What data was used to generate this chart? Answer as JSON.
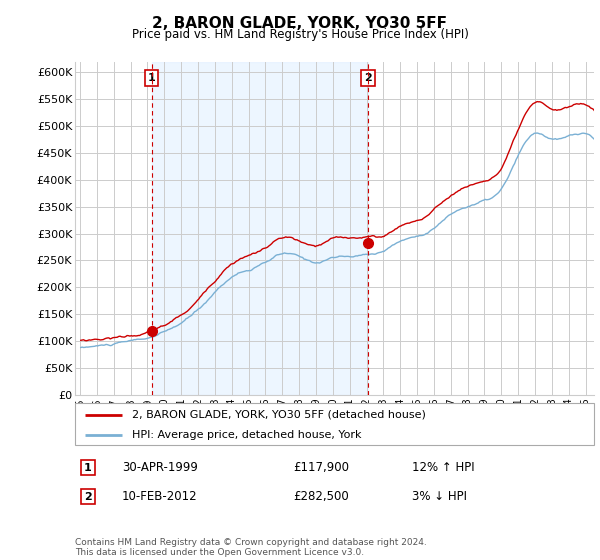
{
  "title": "2, BARON GLADE, YORK, YO30 5FF",
  "subtitle": "Price paid vs. HM Land Registry's House Price Index (HPI)",
  "ylim": [
    0,
    620000
  ],
  "yticks": [
    0,
    50000,
    100000,
    150000,
    200000,
    250000,
    300000,
    350000,
    400000,
    450000,
    500000,
    550000,
    600000
  ],
  "ytick_labels": [
    "£0",
    "£50K",
    "£100K",
    "£150K",
    "£200K",
    "£250K",
    "£300K",
    "£350K",
    "£400K",
    "£450K",
    "£500K",
    "£550K",
    "£600K"
  ],
  "sale1_date": "30-APR-1999",
  "sale1_price": 117900,
  "sale1_hpi": "12% ↑ HPI",
  "sale2_date": "10-FEB-2012",
  "sale2_price": 282500,
  "sale2_hpi": "3% ↓ HPI",
  "legend_line1": "2, BARON GLADE, YORK, YO30 5FF (detached house)",
  "legend_line2": "HPI: Average price, detached house, York",
  "footer": "Contains HM Land Registry data © Crown copyright and database right 2024.\nThis data is licensed under the Open Government Licence v3.0.",
  "line_color_red": "#cc0000",
  "line_color_blue": "#7ab0d4",
  "bg_between": "#ddeeff",
  "background_color": "#ffffff",
  "grid_color": "#cccccc",
  "sale_vline_color": "#cc0000",
  "label_box_color": "#cc0000"
}
